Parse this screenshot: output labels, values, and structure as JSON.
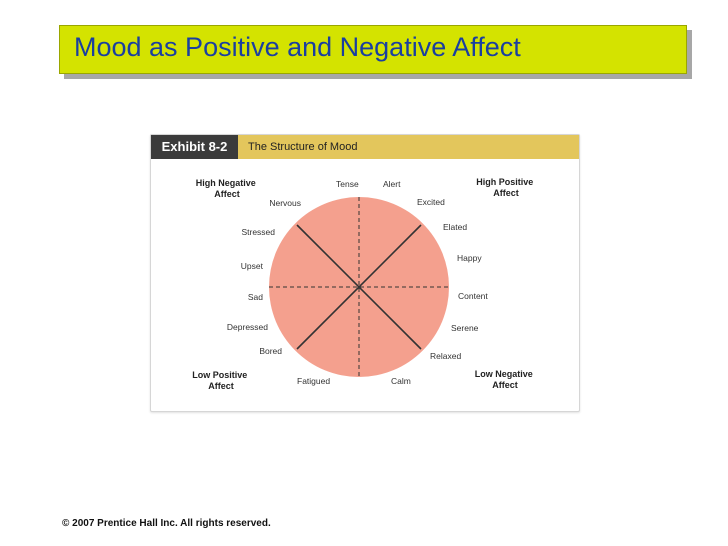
{
  "title": "Mood as Positive and Negative Affect",
  "exhibit": {
    "label": "Exhibit 8-2",
    "name": "The Structure of Mood"
  },
  "diagram": {
    "corners": {
      "top_left": [
        "High Negative",
        "Affect"
      ],
      "top_right": [
        "High Positive",
        "Affect"
      ],
      "bottom_left": [
        "Low Positive",
        "Affect"
      ],
      "bottom_right": [
        "Low Negative",
        "Affect"
      ]
    },
    "moods": [
      "Tense",
      "Alert",
      "Excited",
      "Elated",
      "Happy",
      "Content",
      "Serene",
      "Relaxed",
      "Calm",
      "Fatigued",
      "Bored",
      "Depressed",
      "Sad",
      "Upset",
      "Stressed",
      "Nervous"
    ],
    "colors": {
      "circle_fill": "#f4a08e",
      "axis_line": "#333333"
    }
  },
  "colors": {
    "title_bar": "#d4e300",
    "title_text": "#1a3fa0",
    "exhibit_label_bg": "#3b3b3b",
    "exhibit_name_bg": "#e3c65c"
  },
  "copyright": "© 2007 Prentice Hall Inc. All rights reserved."
}
